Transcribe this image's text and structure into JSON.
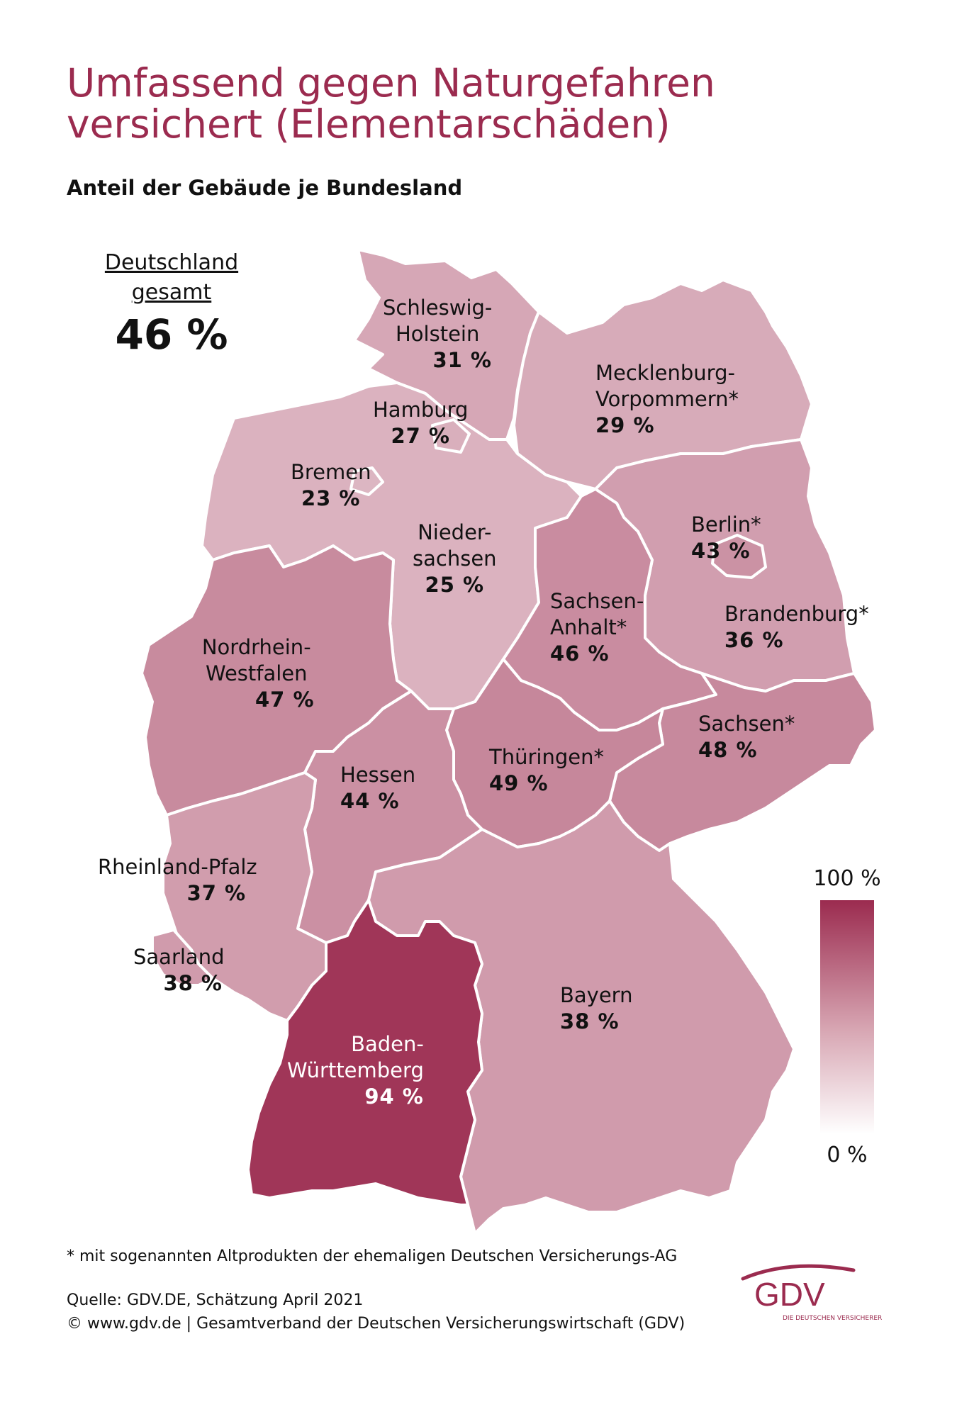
{
  "title": "Umfassend gegen Naturgefahren versichert (Elementarschäden)",
  "subtitle": "Anteil der Gebäude je Bundesland",
  "total": {
    "label_line1": "Deutschland",
    "label_line2": "gesamt",
    "value": "46 %"
  },
  "states": {
    "sh": {
      "name1": "Schleswig-",
      "name2": "Holstein",
      "pct": "31 %",
      "value": 31
    },
    "mv": {
      "name1": "Mecklenburg-",
      "name2": "Vorpommern*",
      "pct": "29 %",
      "value": 29
    },
    "hh": {
      "name1": "Hamburg",
      "pct": "27 %",
      "value": 27
    },
    "hb": {
      "name1": "Bremen",
      "pct": "23 %",
      "value": 23
    },
    "ni": {
      "name1": "Nieder-",
      "name2": "sachsen",
      "pct": "25 %",
      "value": 25
    },
    "be": {
      "name1": "Berlin*",
      "pct": "43 %",
      "value": 43
    },
    "bb": {
      "name1": "Brandenburg*",
      "pct": "36 %",
      "value": 36
    },
    "st": {
      "name1": "Sachsen-",
      "name2": "Anhalt*",
      "pct": "46 %",
      "value": 46
    },
    "nw": {
      "name1": "Nordrhein-",
      "name2": "Westfalen",
      "pct": "47 %",
      "value": 47
    },
    "sn": {
      "name1": "Sachsen*",
      "pct": "48 %",
      "value": 48
    },
    "he": {
      "name1": "Hessen",
      "pct": "44 %",
      "value": 44
    },
    "th": {
      "name1": "Thüringen*",
      "pct": "49 %",
      "value": 49
    },
    "rp": {
      "name1": "Rheinland-Pfalz",
      "pct": "37 %",
      "value": 37
    },
    "sl": {
      "name1": "Saarland",
      "pct": "38 %",
      "value": 38
    },
    "by": {
      "name1": "Bayern",
      "pct": "38 %",
      "value": 38
    },
    "bw": {
      "name1": "Baden-",
      "name2": "Württemberg",
      "pct": "94 %",
      "value": 94
    }
  },
  "legend": {
    "max_label": "100 %",
    "min_label": "0 %",
    "color_max": "#9b2b4f",
    "color_min": "#ffffff"
  },
  "footnote": "* mit sogenannten Altprodukten der ehemaligen Deutschen Versicherungs-AG",
  "source_line1": "Quelle: GDV.DE, Schätzung April 2021",
  "source_line2": "© www.gdv.de | Gesamtverband der Deutschen Versicherungswirtschaft (GDV)",
  "logo": {
    "text": "GDV",
    "tagline": "DIE DEUTSCHEN VERSICHERER",
    "color": "#9b2b4f"
  },
  "colors": {
    "title": "#9b2b4f",
    "border": "#ffffff"
  }
}
